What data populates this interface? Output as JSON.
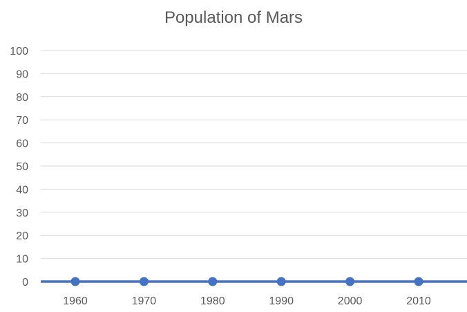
{
  "chart_data": {
    "type": "line",
    "title": "Population of Mars",
    "categories": [
      "1960",
      "1970",
      "1980",
      "1990",
      "2000",
      "2010"
    ],
    "series": [
      {
        "values": [
          0,
          0,
          0,
          0,
          0,
          0
        ]
      }
    ],
    "ylim": [
      0,
      100
    ],
    "yticks": [
      0,
      10,
      20,
      30,
      40,
      50,
      60,
      70,
      80,
      90,
      100
    ],
    "grid": true,
    "legend": "none",
    "colors": {
      "series": "#4472C4",
      "grid": "#d9d9d9",
      "text": "#595959"
    }
  }
}
